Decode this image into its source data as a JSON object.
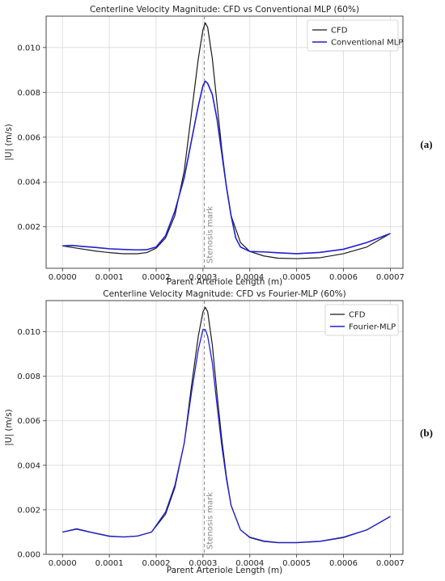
{
  "panel_labels": [
    "(a)",
    "(b)"
  ],
  "annotation": "Stenosis mark",
  "colors": {
    "cfd": "#1a1a1a",
    "mlp": "#1f1fd6",
    "mark": "#8a8a8a",
    "grid": "#d9d9d9"
  },
  "chart_data": [
    {
      "type": "line",
      "title": "Centerline Velocity Magnitude: CFD vs Conventional MLP (60%)",
      "xlabel": "Parent Arteriole Length (m)",
      "ylabel": "|U| (m/s)",
      "xlim": [
        -3.5e-05,
        0.000727
      ],
      "ylim": [
        0.00015,
        0.0114
      ],
      "xticks": [
        0.0,
        0.0001,
        0.0002,
        0.0003,
        0.0004,
        0.0005,
        0.0006,
        0.0007
      ],
      "xtick_labels": [
        "0.0000",
        "0.0001",
        "0.0002",
        "0.0003",
        "0.0004",
        "0.0005",
        "0.0006",
        "0.0007"
      ],
      "yticks": [
        0.002,
        0.004,
        0.006,
        0.008,
        0.01
      ],
      "ytick_labels": [
        "0.002",
        "0.004",
        "0.006",
        "0.008",
        "0.010"
      ],
      "grid": true,
      "legend": "top-right",
      "vline": 0.000303,
      "series": [
        {
          "name": "CFD",
          "color": "#1a1a1a",
          "x": [
            0.0,
            3e-05,
            7e-05,
            0.0001,
            0.00013,
            0.00016,
            0.00018,
            0.0002,
            0.00022,
            0.00024,
            0.00026,
            0.000275,
            0.00029,
            0.0003,
            0.000305,
            0.00031,
            0.00032,
            0.00033,
            0.00034,
            0.00035,
            0.00036,
            0.00038,
            0.0004,
            0.00043,
            0.00046,
            0.0005,
            0.00055,
            0.0006,
            0.00065,
            0.0007
          ],
          "y": [
            0.00115,
            0.00105,
            0.00092,
            0.00085,
            0.0008,
            0.0008,
            0.00085,
            0.00105,
            0.0015,
            0.0025,
            0.0045,
            0.007,
            0.0095,
            0.0108,
            0.0111,
            0.0109,
            0.0095,
            0.0075,
            0.0055,
            0.0038,
            0.0025,
            0.0013,
            0.0009,
            0.0007,
            0.0006,
            0.00058,
            0.00062,
            0.0008,
            0.0011,
            0.0017
          ]
        },
        {
          "name": "Conventional MLP",
          "color": "#1f1fd6",
          "x": [
            0.0,
            2e-05,
            4e-05,
            7e-05,
            0.0001,
            0.00013,
            0.00016,
            0.00018,
            0.0002,
            0.00022,
            0.00024,
            0.00026,
            0.000275,
            0.00029,
            0.0003,
            0.000305,
            0.00031,
            0.00032,
            0.00033,
            0.00034,
            0.00035,
            0.00036,
            0.00037,
            0.00038,
            0.0004,
            0.00043,
            0.00046,
            0.0005,
            0.00055,
            0.0006,
            0.00065,
            0.0007
          ],
          "y": [
            0.00115,
            0.00117,
            0.00113,
            0.00108,
            0.00102,
            0.00099,
            0.00097,
            0.00098,
            0.0011,
            0.0016,
            0.0027,
            0.0042,
            0.0058,
            0.0074,
            0.0083,
            0.0085,
            0.0084,
            0.0079,
            0.0068,
            0.0053,
            0.0038,
            0.0025,
            0.0015,
            0.0011,
            0.0009,
            0.00088,
            0.00084,
            0.0008,
            0.00086,
            0.001,
            0.0013,
            0.0017
          ]
        }
      ]
    },
    {
      "type": "line",
      "title": "Centerline Velocity Magnitude: CFD vs Fourier-MLP (60%)",
      "xlabel": "Parent Arteriole Length (m)",
      "ylabel": "|U| (m/s)",
      "xlim": [
        -3.5e-05,
        0.000727
      ],
      "ylim": [
        0.0,
        0.0114
      ],
      "xticks": [
        0.0,
        0.0001,
        0.0002,
        0.0003,
        0.0004,
        0.0005,
        0.0006,
        0.0007
      ],
      "xtick_labels": [
        "0.0000",
        "0.0001",
        "0.0002",
        "0.0003",
        "0.0004",
        "0.0005",
        "0.0006",
        "0.0007"
      ],
      "yticks": [
        0.0,
        0.002,
        0.004,
        0.006,
        0.008,
        0.01
      ],
      "ytick_labels": [
        "0.000",
        "0.002",
        "0.004",
        "0.006",
        "0.008",
        "0.010"
      ],
      "grid": true,
      "legend": "top-right",
      "vline": 0.000303,
      "series": [
        {
          "name": "CFD",
          "color": "#1a1a1a",
          "x": [
            0.0,
            3e-05,
            6e-05,
            0.0001,
            0.00013,
            0.00016,
            0.00019,
            0.00022,
            0.00024,
            0.00026,
            0.000275,
            0.00029,
            0.0003,
            0.000305,
            0.00031,
            0.00032,
            0.00033,
            0.00034,
            0.00035,
            0.00036,
            0.00038,
            0.0004,
            0.00043,
            0.00046,
            0.0005,
            0.00055,
            0.0006,
            0.00065,
            0.0007
          ],
          "y": [
            0.001,
            0.00115,
            0.001,
            0.00082,
            0.00078,
            0.00082,
            0.001,
            0.0018,
            0.003,
            0.005,
            0.0075,
            0.0098,
            0.0109,
            0.0111,
            0.0109,
            0.0094,
            0.0072,
            0.0052,
            0.0035,
            0.0022,
            0.0011,
            0.00075,
            0.00058,
            0.00052,
            0.00052,
            0.00058,
            0.00075,
            0.0011,
            0.0017
          ]
        },
        {
          "name": "Fourier-MLP",
          "color": "#1f1fd6",
          "x": [
            0.0,
            3e-05,
            6e-05,
            0.0001,
            0.00013,
            0.00016,
            0.00019,
            0.00022,
            0.00024,
            0.00026,
            0.000275,
            0.00029,
            0.0003,
            0.000305,
            0.00031,
            0.00032,
            0.00033,
            0.00034,
            0.00035,
            0.00036,
            0.00038,
            0.0004,
            0.00043,
            0.00046,
            0.0005,
            0.00055,
            0.0006,
            0.00065,
            0.0007
          ],
          "y": [
            0.001,
            0.00113,
            0.00099,
            0.00081,
            0.00078,
            0.00082,
            0.001,
            0.0019,
            0.0031,
            0.005,
            0.0072,
            0.0092,
            0.0101,
            0.0101,
            0.0098,
            0.0086,
            0.0067,
            0.0049,
            0.0034,
            0.0022,
            0.0011,
            0.00077,
            0.0006,
            0.00053,
            0.00053,
            0.00059,
            0.00077,
            0.0011,
            0.0017
          ]
        }
      ]
    }
  ]
}
